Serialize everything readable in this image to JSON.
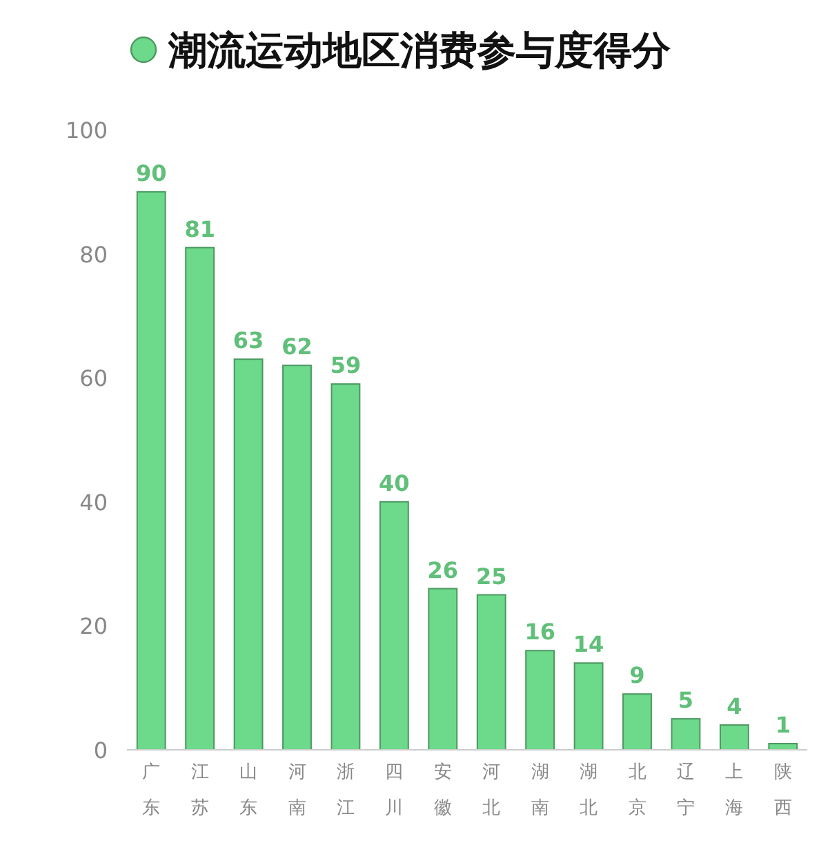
{
  "chart_data": {
    "type": "bar",
    "categories": [
      "广东",
      "江苏",
      "山东",
      "河南",
      "浙江",
      "四川",
      "安徽",
      "河北",
      "湖南",
      "湖北",
      "北京",
      "辽宁",
      "上海",
      "陕西"
    ],
    "series": [
      {
        "name": "潮流运动地区消费参与度得分",
        "color": "#6dd98a",
        "values": [
          90,
          81,
          63,
          62,
          59,
          40,
          26,
          25,
          16,
          14,
          9,
          5,
          4,
          1
        ]
      }
    ],
    "ylim": [
      0,
      100
    ],
    "yticks": [
      0,
      20,
      40,
      60,
      80,
      100
    ],
    "data_labels": true,
    "grid": false,
    "legend": "top"
  }
}
